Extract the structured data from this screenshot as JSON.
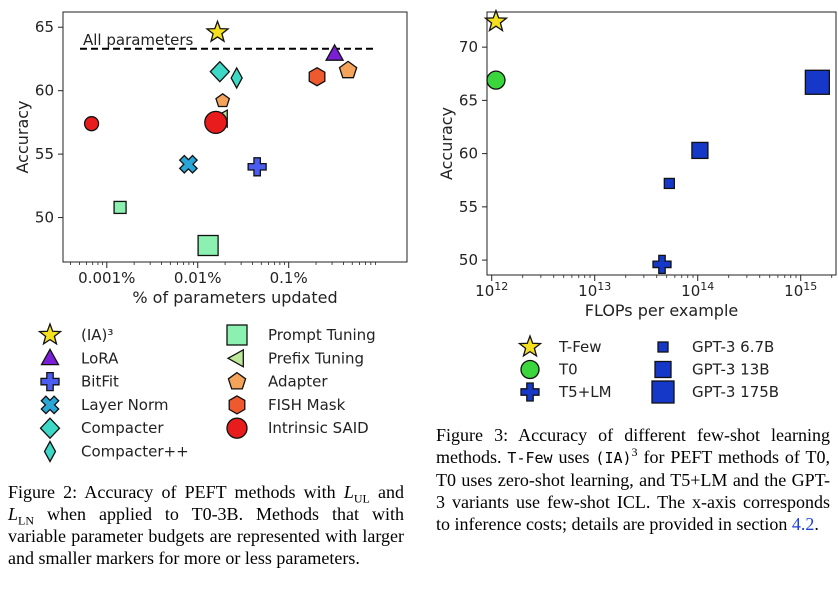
{
  "chart_data": [
    {
      "type": "scatter",
      "title": "",
      "xlabel": "% of parameters updated",
      "ylabel": "Accuracy",
      "x_scale": "log",
      "x_ticks": [
        {
          "value": 0.001,
          "label": "0.001%"
        },
        {
          "value": 0.01,
          "label": "0.01%"
        },
        {
          "value": 0.1,
          "label": "0.1%"
        }
      ],
      "y_ticks": [
        50,
        55,
        60,
        65
      ],
      "xlim": [
        0.00033,
        2.0
      ],
      "ylim": [
        46.5,
        66.2
      ],
      "grid": false,
      "reference_line": {
        "y": 63.3,
        "label": "All parameters",
        "style": "dashed"
      },
      "legend_position": "below",
      "series": [
        {
          "name": "(IA)³",
          "marker": "star",
          "color": "#f4e01e",
          "points": [
            {
              "x": 0.0165,
              "y": 64.6
            }
          ]
        },
        {
          "name": "LoRA",
          "marker": "triangle-up",
          "color": "#7b1fd6",
          "points": [
            {
              "x": 0.32,
              "y": 62.9
            }
          ]
        },
        {
          "name": "BitFit",
          "marker": "plus",
          "color": "#4a5df0",
          "points": [
            {
              "x": 0.045,
              "y": 54.0
            }
          ]
        },
        {
          "name": "Layer Norm",
          "marker": "x",
          "color": "#2aa6d6",
          "points": [
            {
              "x": 0.0079,
              "y": 54.2
            }
          ]
        },
        {
          "name": "Compacter",
          "marker": "diamond",
          "color": "#3ed9c6",
          "points": [
            {
              "x": 0.0175,
              "y": 61.5
            }
          ]
        },
        {
          "name": "Compacter++",
          "marker": "diamond-thin",
          "color": "#3ed9c6",
          "points": [
            {
              "x": 0.0268,
              "y": 61.0
            }
          ]
        },
        {
          "name": "Prompt Tuning",
          "marker": "square",
          "color": "#8cf0b0",
          "points": [
            {
              "x": 0.0014,
              "y": 50.8
            },
            {
              "x": 0.013,
              "y": 47.8
            }
          ]
        },
        {
          "name": "Prefix Tuning",
          "marker": "triangle-left",
          "color": "#bde89a",
          "points": [
            {
              "x": 0.018,
              "y": 57.8
            }
          ]
        },
        {
          "name": "Adapter",
          "marker": "pentagon",
          "color": "#f4a35a",
          "points": [
            {
              "x": 0.0188,
              "y": 59.2
            },
            {
              "x": 0.45,
              "y": 61.6
            }
          ]
        },
        {
          "name": "FISH Mask",
          "marker": "hexagon",
          "color": "#ee5a2e",
          "points": [
            {
              "x": 0.205,
              "y": 61.1
            }
          ]
        },
        {
          "name": "Intrinsic SAID",
          "marker": "circle",
          "color": "#e81c1c",
          "points": [
            {
              "x": 0.00068,
              "y": 57.4
            },
            {
              "x": 0.0158,
              "y": 57.5
            }
          ]
        }
      ]
    },
    {
      "type": "scatter",
      "title": "",
      "xlabel": "FLOPs per example",
      "ylabel": "Accuracy",
      "x_scale": "log",
      "x_ticks": [
        {
          "value": 1000000000000.0,
          "base": "10",
          "exp": "12"
        },
        {
          "value": 10000000000000.0,
          "base": "10",
          "exp": "13"
        },
        {
          "value": 100000000000000.0,
          "base": "10",
          "exp": "14"
        },
        {
          "value": 1000000000000000.0,
          "base": "10",
          "exp": "15"
        }
      ],
      "y_ticks": [
        50,
        55,
        60,
        65,
        70
      ],
      "xlim": [
        900000000000.0,
        2200000000000000.0
      ],
      "ylim": [
        48.6,
        73.3
      ],
      "grid": false,
      "legend_position": "below",
      "series": [
        {
          "name": "T-Few",
          "marker": "star",
          "color": "#f4e01e",
          "points": [
            {
              "x": 1100000000000.0,
              "y": 72.4
            }
          ]
        },
        {
          "name": "T0",
          "marker": "circle",
          "color": "#3bd63b",
          "points": [
            {
              "x": 1100000000000.0,
              "y": 66.9
            }
          ]
        },
        {
          "name": "T5+LM",
          "marker": "plus",
          "color": "#1538c8",
          "points": [
            {
              "x": 45000000000000.0,
              "y": 49.6
            }
          ]
        },
        {
          "name": "GPT-3 6.7B",
          "marker": "square-small",
          "color": "#1538c8",
          "points": [
            {
              "x": 53000000000000.0,
              "y": 57.2
            }
          ]
        },
        {
          "name": "GPT-3 13B",
          "marker": "square-medium",
          "color": "#1538c8",
          "points": [
            {
              "x": 105000000000000.0,
              "y": 60.3
            }
          ]
        },
        {
          "name": "GPT-3 175B",
          "marker": "square-large",
          "color": "#1538c8",
          "points": [
            {
              "x": 1450000000000000.0,
              "y": 66.7
            }
          ]
        }
      ]
    }
  ],
  "captions": {
    "fig2": {
      "label": "Figure 2:",
      "text_a": " Accuracy of PEFT methods with ",
      "sym1": "L",
      "sub1": "UL",
      "text_b": " and ",
      "sym2": "L",
      "sub2": "LN",
      "text_c": " when applied to T0-3B. Methods that with variable parameter budgets are represented with larger and smaller markers for more or less parameters."
    },
    "fig3": {
      "label": "Figure 3:",
      "text_a": " Accuracy of different few-shot learning methods. ",
      "code1": "T-Few",
      "text_b": " uses ",
      "code2": "(IA)",
      "sup": "3",
      "text_c": " for PEFT methods of T0, T0 uses zero-shot learning, and T5+LM and the GPT-3 variants use few-shot ICL. The x-axis corresponds to inference costs; details are provided in section ",
      "ref": "4.2",
      "text_d": "."
    }
  }
}
